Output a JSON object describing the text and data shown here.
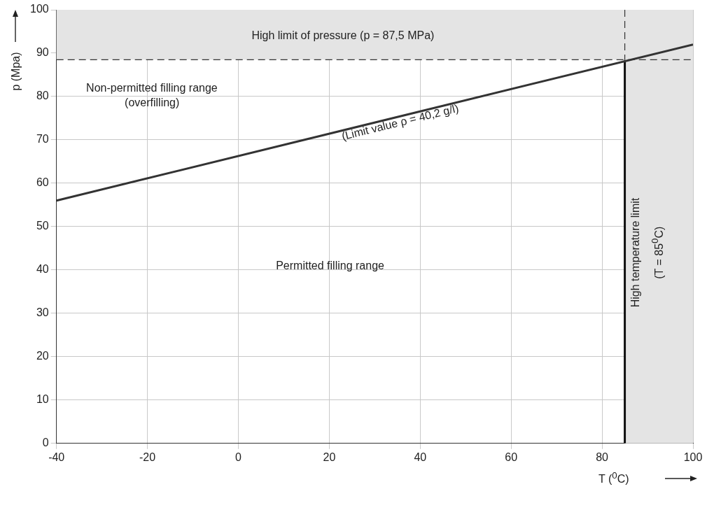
{
  "chart_data": {
    "type": "line",
    "xlabel": "T ($^{0}$C)",
    "ylabel": "p (Mpa)",
    "xlim": [
      -40,
      100
    ],
    "xticks": [
      -40,
      -20,
      0,
      20,
      40,
      60,
      80,
      100
    ],
    "ylim": [
      0,
      100
    ],
    "yticks": [
      0,
      10,
      20,
      30,
      40,
      50,
      60,
      70,
      80,
      90,
      100
    ],
    "grid": true,
    "marker": "none",
    "line_style": "solid",
    "series": [
      {
        "color": "#333333",
        "x": [
          -40,
          100
        ],
        "values": [
          56,
          92
        ]
      },
      {
        "color": "#111111",
        "x": [
          85,
          85
        ],
        "values": [
          0,
          88.3
        ]
      }
    ],
    "ref_lines": [
      {
        "axis": "y",
        "value": 88.5,
        "color": "#333333",
        "line_style": "dashed"
      },
      {
        "axis": "x",
        "value": 85,
        "color": "#333333",
        "line_style": "dashed"
      }
    ],
    "bands": [
      {
        "axis": "x",
        "from": 85,
        "to": 100,
        "color": "#e4e4e4"
      },
      {
        "axis": "y",
        "from": 88.5,
        "to": 100,
        "color": "#e4e4e4"
      }
    ],
    "annotations": [
      "High limit of pressure (p = 87,5 MPa)",
      "Non-permitted filling range",
      "(overfilling)",
      "(Limit value ρ = 40,2 g/l)",
      "Permitted filling range",
      "High temperature limit",
      "(T = 85$^{0}$C)"
    ]
  }
}
